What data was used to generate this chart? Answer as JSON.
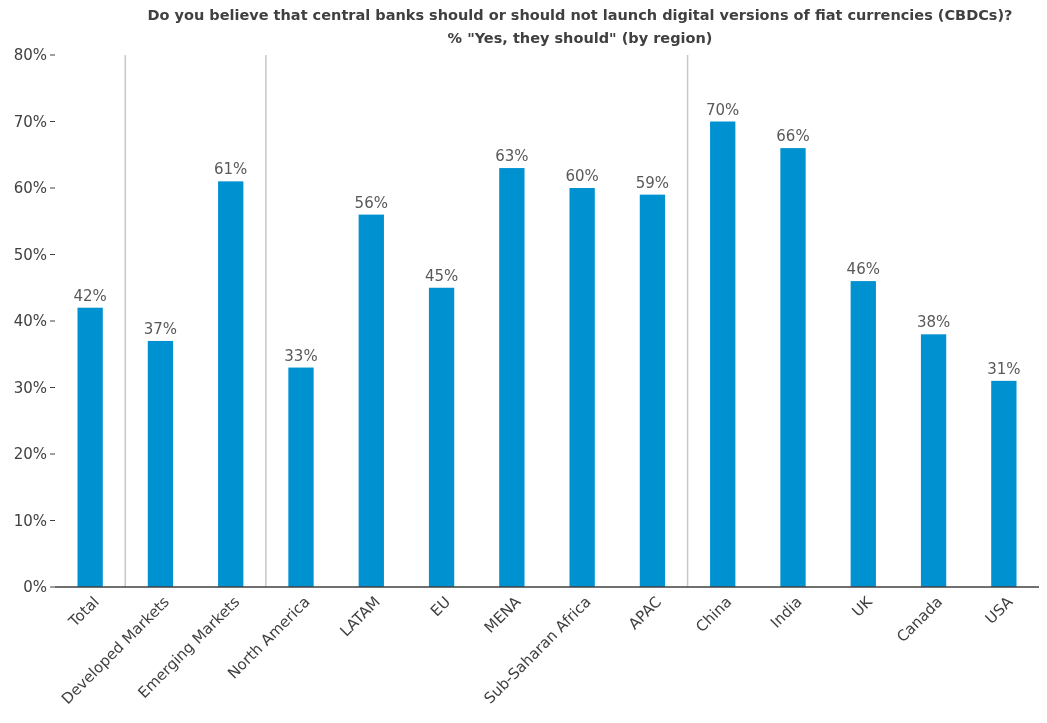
{
  "chart_data": {
    "type": "bar",
    "title": "Do you believe that central banks should or should not launch digital versions of fiat currencies (CBDCs)?",
    "subtitle": "% \"Yes, they should\" (by region)",
    "categories": [
      "Total",
      "Developed Markets",
      "Emerging Markets",
      "North America",
      "LATAM",
      "EU",
      "MENA",
      "Sub-Saharan Africa",
      "APAC",
      "China",
      "India",
      "UK",
      "Canada",
      "USA"
    ],
    "values": [
      42,
      37,
      61,
      33,
      56,
      45,
      63,
      60,
      59,
      70,
      66,
      46,
      38,
      31
    ],
    "color": "#0091d0",
    "ylim": [
      0,
      80
    ],
    "yticks": [
      {
        "value": 0,
        "label": "0%"
      },
      {
        "value": 10,
        "label": "10%"
      },
      {
        "value": 20,
        "label": "20%"
      },
      {
        "value": 30,
        "label": "30%"
      },
      {
        "value": 40,
        "label": "40%"
      },
      {
        "value": 50,
        "label": "50%"
      },
      {
        "value": 60,
        "label": "60%"
      },
      {
        "value": 70,
        "label": "70%"
      },
      {
        "value": 80,
        "label": "80%"
      }
    ],
    "value_labels": [
      "42%",
      "37%",
      "61%",
      "33%",
      "56%",
      "45%",
      "63%",
      "60%",
      "59%",
      "70%",
      "66%",
      "46%",
      "38%",
      "31%"
    ],
    "grid": false
  }
}
